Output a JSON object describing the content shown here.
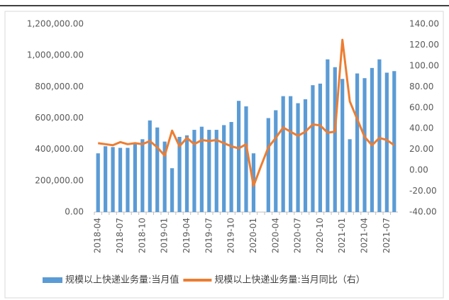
{
  "chart_data": {
    "type": "bar-line",
    "categories": [
      "2018-04",
      null,
      null,
      "2018-07",
      null,
      null,
      "2018-10",
      null,
      null,
      "2019-01",
      null,
      null,
      "2019-04",
      null,
      null,
      "2019-07",
      null,
      null,
      "2019-10",
      null,
      null,
      "2020-01",
      null,
      null,
      "2020-04",
      null,
      null,
      "2020-07",
      null,
      null,
      "2020-10",
      null,
      null,
      "2021-01",
      null,
      null,
      "2021-04",
      null,
      null,
      "2021-07",
      null
    ],
    "series": [
      {
        "name": "规模以上快递业务量:当月值",
        "color": "#5b9bd5",
        "kind": "bar",
        "values": [
          375000,
          420000,
          415000,
          410000,
          410000,
          440000,
          465000,
          585000,
          540000,
          450000,
          280000,
          480000,
          490000,
          525000,
          545000,
          525000,
          525000,
          555000,
          575000,
          710000,
          675000,
          375000,
          null,
          600000,
          650000,
          740000,
          740000,
          695000,
          720000,
          810000,
          820000,
          975000,
          925000,
          850000,
          465000,
          885000,
          855000,
          920000,
          975000,
          890000,
          900000
        ]
      },
      {
        "name": "规模以上快递业务量:当月同比（右）",
        "color": "#ed7d31",
        "kind": "line",
        "axis": "y2",
        "values": [
          26,
          25,
          24,
          27,
          25,
          26,
          25,
          28,
          22,
          14,
          38,
          23,
          31,
          25,
          29,
          28,
          29,
          26,
          23,
          21,
          25,
          -15,
          4,
          22,
          31,
          41,
          37,
          33,
          37,
          44,
          43,
          36,
          37,
          125,
          66,
          49,
          32,
          24,
          31,
          29,
          24
        ]
      }
    ],
    "ylim": [
      0,
      1200000
    ],
    "yticks": [
      {
        "value": 0,
        "label": "0.00"
      },
      {
        "value": 200000,
        "label": "200,000.00"
      },
      {
        "value": 400000,
        "label": "400,000.00"
      },
      {
        "value": 600000,
        "label": "600,000.00"
      },
      {
        "value": 800000,
        "label": "800,000.00"
      },
      {
        "value": 1000000,
        "label": "1,000,000.00"
      },
      {
        "value": 1200000,
        "label": "1,200,000.00"
      }
    ],
    "y2lim": [
      -40,
      140
    ],
    "y2ticks": [
      {
        "value": -40,
        "label": "-40.00"
      },
      {
        "value": -20,
        "label": "-20.00"
      },
      {
        "value": 0,
        "label": "0.00"
      },
      {
        "value": 20,
        "label": "20.00"
      },
      {
        "value": 40,
        "label": "40.00"
      },
      {
        "value": 60,
        "label": "60.00"
      },
      {
        "value": 80,
        "label": "80.00"
      },
      {
        "value": 100,
        "label": "100.00"
      },
      {
        "value": 120,
        "label": "120.00"
      },
      {
        "value": 140,
        "label": "140.00"
      }
    ],
    "grid": false,
    "legend": "bottom"
  }
}
